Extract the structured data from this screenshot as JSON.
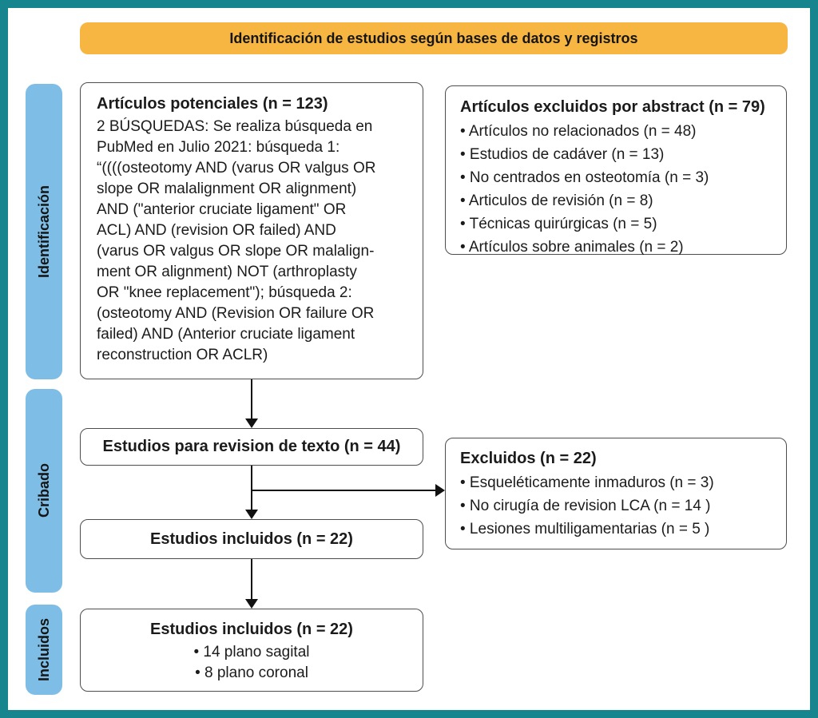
{
  "banner": {
    "title": "Identificación de estudios según bases de datos y registros"
  },
  "sidebar": {
    "items": [
      {
        "label": "Identificación"
      },
      {
        "label": "Cribado"
      },
      {
        "label": "Incluidos"
      }
    ]
  },
  "boxes": {
    "potenciales": {
      "title": "Artículos potenciales (n = 123)",
      "body_lines": [
        "2 BÚSQUEDAS: Se realiza búsqueda en",
        "PubMed en Julio 2021: búsqueda 1:",
        "“((((osteotomy AND (varus OR valgus OR",
        "slope OR malalignment OR alignment)",
        "AND (\"anterior cruciate ligament\" OR",
        "ACL) AND (revision OR failed) AND",
        "(varus OR valgus OR slope OR malalign-",
        "ment OR alignment) NOT (arthroplasty",
        "OR \"knee replacement\"); búsqueda 2:",
        "(osteotomy AND (Revision OR failure OR",
        "failed) AND (Anterior cruciate ligament",
        "reconstruction OR ACLR)"
      ]
    },
    "excluidos_abstract": {
      "title": "Artículos excluidos por abstract (n = 79)",
      "bullets": [
        "Artículos no relacionados (n = 48)",
        "Estudios de cadáver (n = 13)",
        "No centrados en osteotomía (n = 3)",
        "Articulos de revisión (n = 8)",
        "Técnicas quirúrgicas (n = 5)",
        "Artículos sobre animales (n = 2)"
      ]
    },
    "revision_texto": {
      "title": "Estudios para revision de texto (n = 44)"
    },
    "excluidos": {
      "title": "Excluidos (n = 22)",
      "bullets": [
        "Esqueléticamente inmaduros (n = 3)",
        "No cirugía de revision LCA (n = 14 )",
        "Lesiones multiligamentarias (n = 5 )"
      ]
    },
    "incluidos": {
      "title": "Estudios incluidos (n = 22)"
    },
    "incluidos_final": {
      "title": "Estudios incluidos (n = 22)",
      "bullets": [
        "14 plano sagital",
        "8 plano coronal"
      ]
    }
  },
  "ui": {
    "bullet_char": "•",
    "colors": {
      "frame_border": "#17858D",
      "banner_bg": "#F7B541",
      "sidebar_bg": "#7EBEE6",
      "box_border": "#4D4D4D",
      "text": "#1B1B1B"
    }
  }
}
